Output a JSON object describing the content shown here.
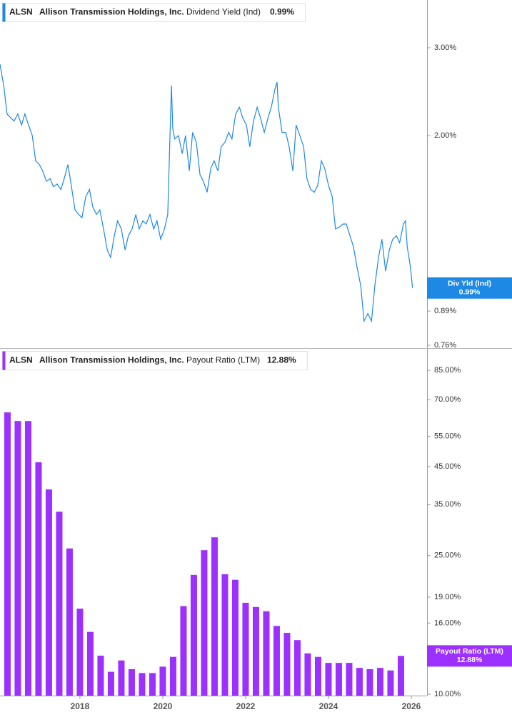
{
  "chart_data": [
    {
      "type": "line",
      "ticker": "ALSN",
      "company": "Allison Transmission Holdings, Inc.",
      "metric": "Dividend Yield (Ind)",
      "last_label": "0.99%",
      "flag_name": "Div Yld (Ind)",
      "color": "#1e88e5",
      "log_scale": true,
      "xlim": [
        2016.07,
        2026.38
      ],
      "ylim": [
        0.75,
        3.74
      ],
      "yticks": [
        {
          "value": 3,
          "label": "3.00%"
        },
        {
          "value": 2,
          "label": "2.00%"
        },
        {
          "value": 0.89,
          "label": "0.89%"
        },
        {
          "value": 0.76,
          "label": "0.76%"
        }
      ],
      "x": [
        2016.07,
        2016.16,
        2016.24,
        2016.33,
        2016.41,
        2016.5,
        2016.59,
        2016.67,
        2016.76,
        2016.85,
        2016.93,
        2017.02,
        2017.1,
        2017.19,
        2017.28,
        2017.36,
        2017.45,
        2017.54,
        2017.62,
        2017.71,
        2017.79,
        2017.88,
        2017.97,
        2018.05,
        2018.14,
        2018.23,
        2018.31,
        2018.4,
        2018.48,
        2018.57,
        2018.66,
        2018.74,
        2018.83,
        2018.91,
        2019.0,
        2019.09,
        2019.17,
        2019.26,
        2019.35,
        2019.43,
        2019.52,
        2019.6,
        2019.69,
        2019.78,
        2019.86,
        2019.95,
        2020.04,
        2020.12,
        2020.17,
        2020.21,
        2020.24,
        2020.29,
        2020.38,
        2020.47,
        2020.55,
        2020.64,
        2020.72,
        2020.81,
        2020.9,
        2020.98,
        2021.07,
        2021.16,
        2021.24,
        2021.33,
        2021.41,
        2021.5,
        2021.59,
        2021.67,
        2021.76,
        2021.85,
        2021.93,
        2022.02,
        2022.1,
        2022.19,
        2022.28,
        2022.36,
        2022.45,
        2022.54,
        2022.62,
        2022.71,
        2022.76,
        2022.79,
        2022.88,
        2022.97,
        2023.05,
        2023.14,
        2023.22,
        2023.31,
        2023.4,
        2023.48,
        2023.57,
        2023.66,
        2023.74,
        2023.83,
        2023.91,
        2024.0,
        2024.09,
        2024.17,
        2024.26,
        2024.35,
        2024.43,
        2024.52,
        2024.6,
        2024.69,
        2024.78,
        2024.86,
        2024.95,
        2025.04,
        2025.12,
        2025.21,
        2025.29,
        2025.38,
        2025.47,
        2025.55,
        2025.64,
        2025.72,
        2025.81,
        2025.86,
        2025.9,
        2025.98,
        2026.03
      ],
      "values": [
        2.78,
        2.52,
        2.21,
        2.17,
        2.14,
        2.21,
        2.1,
        2.21,
        2.1,
        2.0,
        1.78,
        1.75,
        1.7,
        1.62,
        1.64,
        1.58,
        1.6,
        1.56,
        1.64,
        1.75,
        1.59,
        1.42,
        1.39,
        1.37,
        1.51,
        1.56,
        1.44,
        1.39,
        1.42,
        1.3,
        1.18,
        1.14,
        1.26,
        1.35,
        1.3,
        1.18,
        1.26,
        1.3,
        1.39,
        1.3,
        1.35,
        1.33,
        1.39,
        1.3,
        1.35,
        1.24,
        1.3,
        1.39,
        1.94,
        2.52,
        2.07,
        1.97,
        2.0,
        1.84,
        2.0,
        1.7,
        2.03,
        1.94,
        1.67,
        1.62,
        1.54,
        1.72,
        1.78,
        1.7,
        1.9,
        1.94,
        2.03,
        1.97,
        2.21,
        2.28,
        2.17,
        2.1,
        1.9,
        2.14,
        2.28,
        2.17,
        2.03,
        2.17,
        2.28,
        2.48,
        2.56,
        2.28,
        2.03,
        2.03,
        1.9,
        1.7,
        2.1,
        2.0,
        1.9,
        1.64,
        1.56,
        1.54,
        1.59,
        1.78,
        1.72,
        1.59,
        1.51,
        1.3,
        1.31,
        1.33,
        1.33,
        1.26,
        1.2,
        1.09,
        1.0,
        0.85,
        0.88,
        0.85,
        1.0,
        1.14,
        1.24,
        1.07,
        1.18,
        1.24,
        1.26,
        1.22,
        1.33,
        1.35,
        1.2,
        1.09,
        0.99
      ]
    },
    {
      "type": "bar",
      "ticker": "ALSN",
      "company": "Allison Transmission Holdings, Inc.",
      "metric": "Payout Ratio (LTM)",
      "last_label": "12.88%",
      "flag_name": "Payout Ratio (LTM)",
      "color": "#9b30ff",
      "log_scale": true,
      "xlim": [
        2016.07,
        2026.38
      ],
      "ylim": [
        9.91,
        97.5
      ],
      "xticks": [
        2018,
        2020,
        2022,
        2024,
        2026
      ],
      "yticks": [
        {
          "value": 85,
          "label": "85.00%"
        },
        {
          "value": 70,
          "label": "70.00%"
        },
        {
          "value": 55,
          "label": "55.00%"
        },
        {
          "value": 45,
          "label": "45.00%"
        },
        {
          "value": 35,
          "label": "35.00%"
        },
        {
          "value": 25,
          "label": "25.00%"
        },
        {
          "value": 19,
          "label": "19.00%"
        },
        {
          "value": 16,
          "label": "16.00%"
        },
        {
          "value": 10,
          "label": "10.00%"
        }
      ],
      "x": [
        2016.25,
        2016.5,
        2016.75,
        2017.0,
        2017.25,
        2017.5,
        2017.75,
        2018.0,
        2018.25,
        2018.5,
        2018.75,
        2019.0,
        2019.25,
        2019.5,
        2019.75,
        2020.0,
        2020.25,
        2020.5,
        2020.75,
        2021.0,
        2021.25,
        2021.5,
        2021.75,
        2022.0,
        2022.25,
        2022.5,
        2022.75,
        2023.0,
        2023.25,
        2023.5,
        2023.75,
        2024.0,
        2024.25,
        2024.5,
        2024.75,
        2025.0,
        2025.25,
        2025.5,
        2025.75
      ],
      "values": [
        64.4,
        60.8,
        60.8,
        46.3,
        38.7,
        33.4,
        26.2,
        17.6,
        15.1,
        12.9,
        11.6,
        12.5,
        11.8,
        11.5,
        11.5,
        12.0,
        12.8,
        17.9,
        22.0,
        25.9,
        28.2,
        22.1,
        21.3,
        18.3,
        17.8,
        17.3,
        15.7,
        15.0,
        14.3,
        13.1,
        12.8,
        12.3,
        12.3,
        12.3,
        11.9,
        11.8,
        11.9,
        11.7,
        12.88
      ]
    }
  ]
}
